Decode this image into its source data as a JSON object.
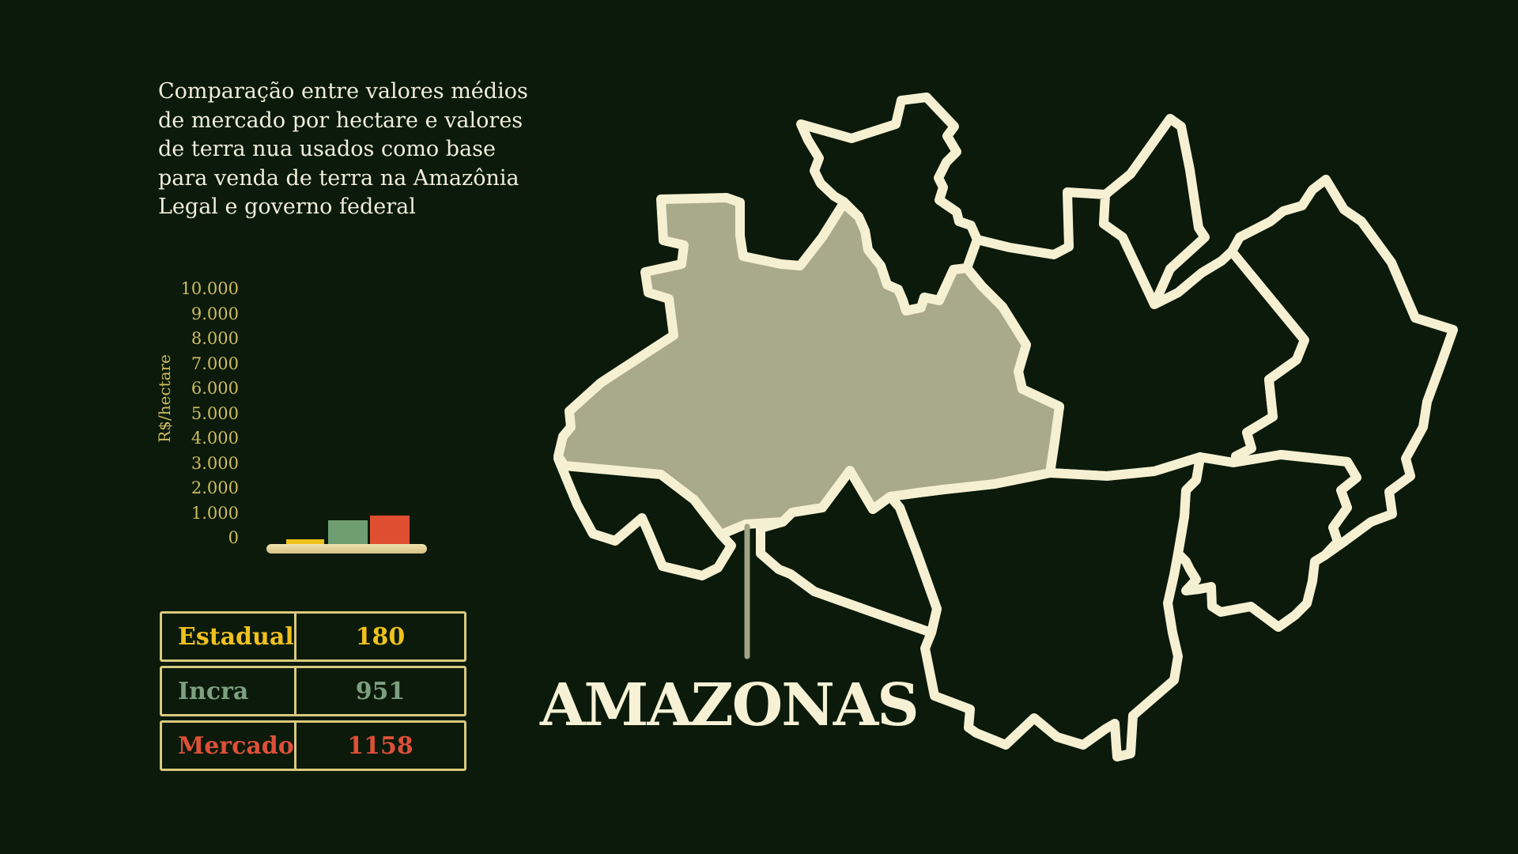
{
  "title": {
    "text": "Comparação entre valores médios\nde mercado por hectare e valores\nde terra nua usados como base\npara venda de terra na Amazônia\nLegal e governo federal"
  },
  "chart_data": {
    "type": "bar",
    "title": "",
    "xlabel": "",
    "ylabel": "R$/hectare",
    "ylim": [
      0,
      10000
    ],
    "grid": false,
    "legend_position": "none",
    "ytick_labels": [
      "10.000",
      "9.000",
      "8.000",
      "7.000",
      "6.000",
      "5.000",
      "4.000",
      "3.000",
      "2.000",
      "1.000",
      "0"
    ],
    "categories": [
      "Estadual",
      "Incra",
      "Mercado"
    ],
    "values": [
      180,
      951,
      1158
    ],
    "bar_colors": [
      "#efc11d",
      "#6f9e72",
      "#e04e31"
    ]
  },
  "table": {
    "rows": [
      {
        "label": "Estadual",
        "value": "180",
        "color": "#efc11d"
      },
      {
        "label": "Incra",
        "value": "951",
        "color": "#7da081"
      },
      {
        "label": "Mercado",
        "value": "1158",
        "color": "#dd5038"
      }
    ]
  },
  "map": {
    "highlight_label": "AMAZONAS",
    "highlighted_state": "Amazonas",
    "states": [
      "Acre",
      "Amazonas",
      "Amapá",
      "Maranhão",
      "Mato Grosso",
      "Pará",
      "Rondônia",
      "Roraima",
      "Tocantins"
    ],
    "colors": {
      "background": "#0b1a0a",
      "border": "#f6f0d2",
      "highlight_fill": "#a9a98c",
      "leader_line": "#a0a386"
    }
  }
}
